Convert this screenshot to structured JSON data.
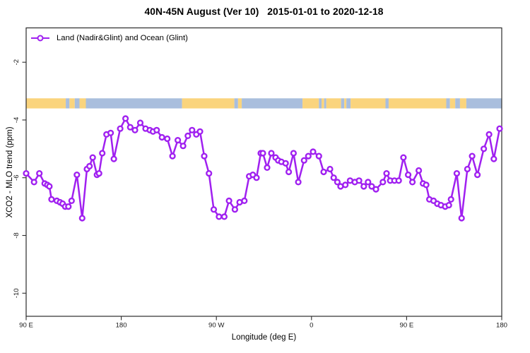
{
  "title": "40N-45N August (Ver 10)   2015-01-01 to 2020-12-18",
  "legend": {
    "label": "Land (Nadir&Glint) and Ocean (Glint)",
    "marker_color": "#A020F0"
  },
  "axes": {
    "xlabel": "Longitude (deg E)",
    "ylabel": "XCO2 - MLO trend (ppm)"
  },
  "chart_data": {
    "type": "line",
    "title": "40N-45N August (Ver 10)   2015-01-01 to 2020-12-18",
    "xlabel": "Longitude (deg E)",
    "ylabel": "XCO2 - MLO trend (ppm)",
    "xlim": [
      90,
      540
    ],
    "ylim": [
      -10.8,
      -0.81
    ],
    "grid": false,
    "legend_position": "top-left",
    "x_ticks": [
      {
        "value": 90,
        "label": "90 E"
      },
      {
        "value": 180,
        "label": "180"
      },
      {
        "value": 270,
        "label": "90 W"
      },
      {
        "value": 360,
        "label": "0"
      },
      {
        "value": 450,
        "label": "90 E"
      },
      {
        "value": 540,
        "label": "180"
      }
    ],
    "y_ticks": [
      {
        "value": -2,
        "label": "-2"
      },
      {
        "value": -4,
        "label": "-4"
      },
      {
        "value": -6,
        "label": "-6"
      },
      {
        "value": -8,
        "label": "-8"
      },
      {
        "value": -10,
        "label": "-10"
      }
    ],
    "series": [
      {
        "name": "Land (Nadir&Glint) and Ocean (Glint)",
        "color": "#A020F0",
        "marker": "open-circle",
        "x": [
          90,
          97.5,
          102.5,
          107.5,
          110,
          112,
          114,
          119,
          122,
          124.5,
          127,
          130,
          133,
          138,
          143,
          147.5,
          150,
          153,
          157,
          159,
          162,
          166,
          170,
          173,
          179,
          184,
          188.5,
          193,
          198,
          203,
          207,
          210,
          213.5,
          218.5,
          223.5,
          228.5,
          233.5,
          238.5,
          243,
          247,
          251,
          254.5,
          258.5,
          263,
          267.5,
          272.5,
          277.5,
          282,
          287.5,
          292,
          296.5,
          301,
          304.5,
          308,
          312,
          314,
          318,
          322,
          326,
          328.5,
          331.5,
          335.5,
          338.5,
          343,
          347.5,
          353,
          357,
          361.5,
          367,
          371.5,
          377.5,
          381,
          384.5,
          387.5,
          392,
          396.5,
          401,
          405,
          409.5,
          413.5,
          417,
          421,
          427.5,
          431,
          434.5,
          438.5,
          442.5,
          447,
          451.5,
          455.5,
          461.5,
          465.5,
          468.5,
          471.5,
          475.5,
          479,
          482.5,
          486.5,
          490,
          492,
          497.5,
          502,
          507.5,
          512,
          517,
          523,
          528,
          532.5,
          538
        ],
        "y": [
          -5.85,
          -6.15,
          -5.85,
          -6.2,
          -6.25,
          -6.3,
          -6.75,
          -6.8,
          -6.85,
          -6.9,
          -7.0,
          -7.0,
          -6.8,
          -5.9,
          -7.4,
          -5.7,
          -5.6,
          -5.3,
          -5.9,
          -5.85,
          -5.15,
          -4.5,
          -4.45,
          -5.35,
          -4.3,
          -3.95,
          -4.25,
          -4.35,
          -4.1,
          -4.3,
          -4.35,
          -4.4,
          -4.35,
          -4.6,
          -4.65,
          -5.25,
          -4.7,
          -4.9,
          -4.55,
          -4.35,
          -4.5,
          -4.4,
          -5.25,
          -5.85,
          -7.1,
          -7.35,
          -7.35,
          -6.8,
          -7.1,
          -6.85,
          -6.8,
          -5.95,
          -5.9,
          -6.0,
          -5.15,
          -5.15,
          -5.65,
          -5.15,
          -5.3,
          -5.4,
          -5.45,
          -5.5,
          -5.8,
          -5.15,
          -6.15,
          -5.4,
          -5.25,
          -5.1,
          -5.25,
          -5.8,
          -5.7,
          -6.0,
          -6.15,
          -6.3,
          -6.25,
          -6.1,
          -6.15,
          -6.1,
          -6.3,
          -6.15,
          -6.3,
          -6.4,
          -6.15,
          -5.85,
          -6.1,
          -6.1,
          -6.1,
          -5.3,
          -5.9,
          -6.15,
          -5.75,
          -6.2,
          -6.25,
          -6.75,
          -6.8,
          -6.9,
          -6.95,
          -7.0,
          -6.95,
          -6.75,
          -5.85,
          -7.4,
          -5.7,
          -5.25,
          -5.9,
          -5.0,
          -4.5,
          -5.35,
          -4.3
        ]
      }
    ],
    "map_band": {
      "description": "40N-45N latitude world-map strip",
      "y_top": -3.25,
      "y_bottom": -3.6,
      "land_color": "#FAD47D",
      "ocean_color": "#A9BEDD",
      "segments": [
        {
          "from": 90,
          "to": 127.5,
          "type": "land"
        },
        {
          "from": 127.5,
          "to": 131,
          "type": "ocean"
        },
        {
          "from": 131,
          "to": 136,
          "type": "land"
        },
        {
          "from": 136,
          "to": 140.5,
          "type": "ocean"
        },
        {
          "from": 140.5,
          "to": 146.5,
          "type": "land"
        },
        {
          "from": 146.5,
          "to": 237.5,
          "type": "ocean"
        },
        {
          "from": 237.5,
          "to": 287,
          "type": "land"
        },
        {
          "from": 287,
          "to": 290.5,
          "type": "ocean"
        },
        {
          "from": 290.5,
          "to": 294,
          "type": "land"
        },
        {
          "from": 294,
          "to": 351.5,
          "type": "ocean"
        },
        {
          "from": 351.5,
          "to": 367,
          "type": "land"
        },
        {
          "from": 367,
          "to": 369.5,
          "type": "ocean"
        },
        {
          "from": 369.5,
          "to": 372,
          "type": "land"
        },
        {
          "from": 372,
          "to": 374,
          "type": "ocean"
        },
        {
          "from": 374,
          "to": 388,
          "type": "land"
        },
        {
          "from": 388,
          "to": 391,
          "type": "ocean"
        },
        {
          "from": 391,
          "to": 393,
          "type": "land"
        },
        {
          "from": 393,
          "to": 397,
          "type": "ocean"
        },
        {
          "from": 397,
          "to": 430,
          "type": "land"
        },
        {
          "from": 430,
          "to": 433,
          "type": "ocean"
        },
        {
          "from": 433,
          "to": 487.5,
          "type": "land"
        },
        {
          "from": 487.5,
          "to": 491,
          "type": "ocean"
        },
        {
          "from": 491,
          "to": 496,
          "type": "land"
        },
        {
          "from": 496,
          "to": 500.5,
          "type": "ocean"
        },
        {
          "from": 500.5,
          "to": 506.5,
          "type": "land"
        },
        {
          "from": 506.5,
          "to": 540,
          "type": "ocean"
        }
      ]
    }
  }
}
